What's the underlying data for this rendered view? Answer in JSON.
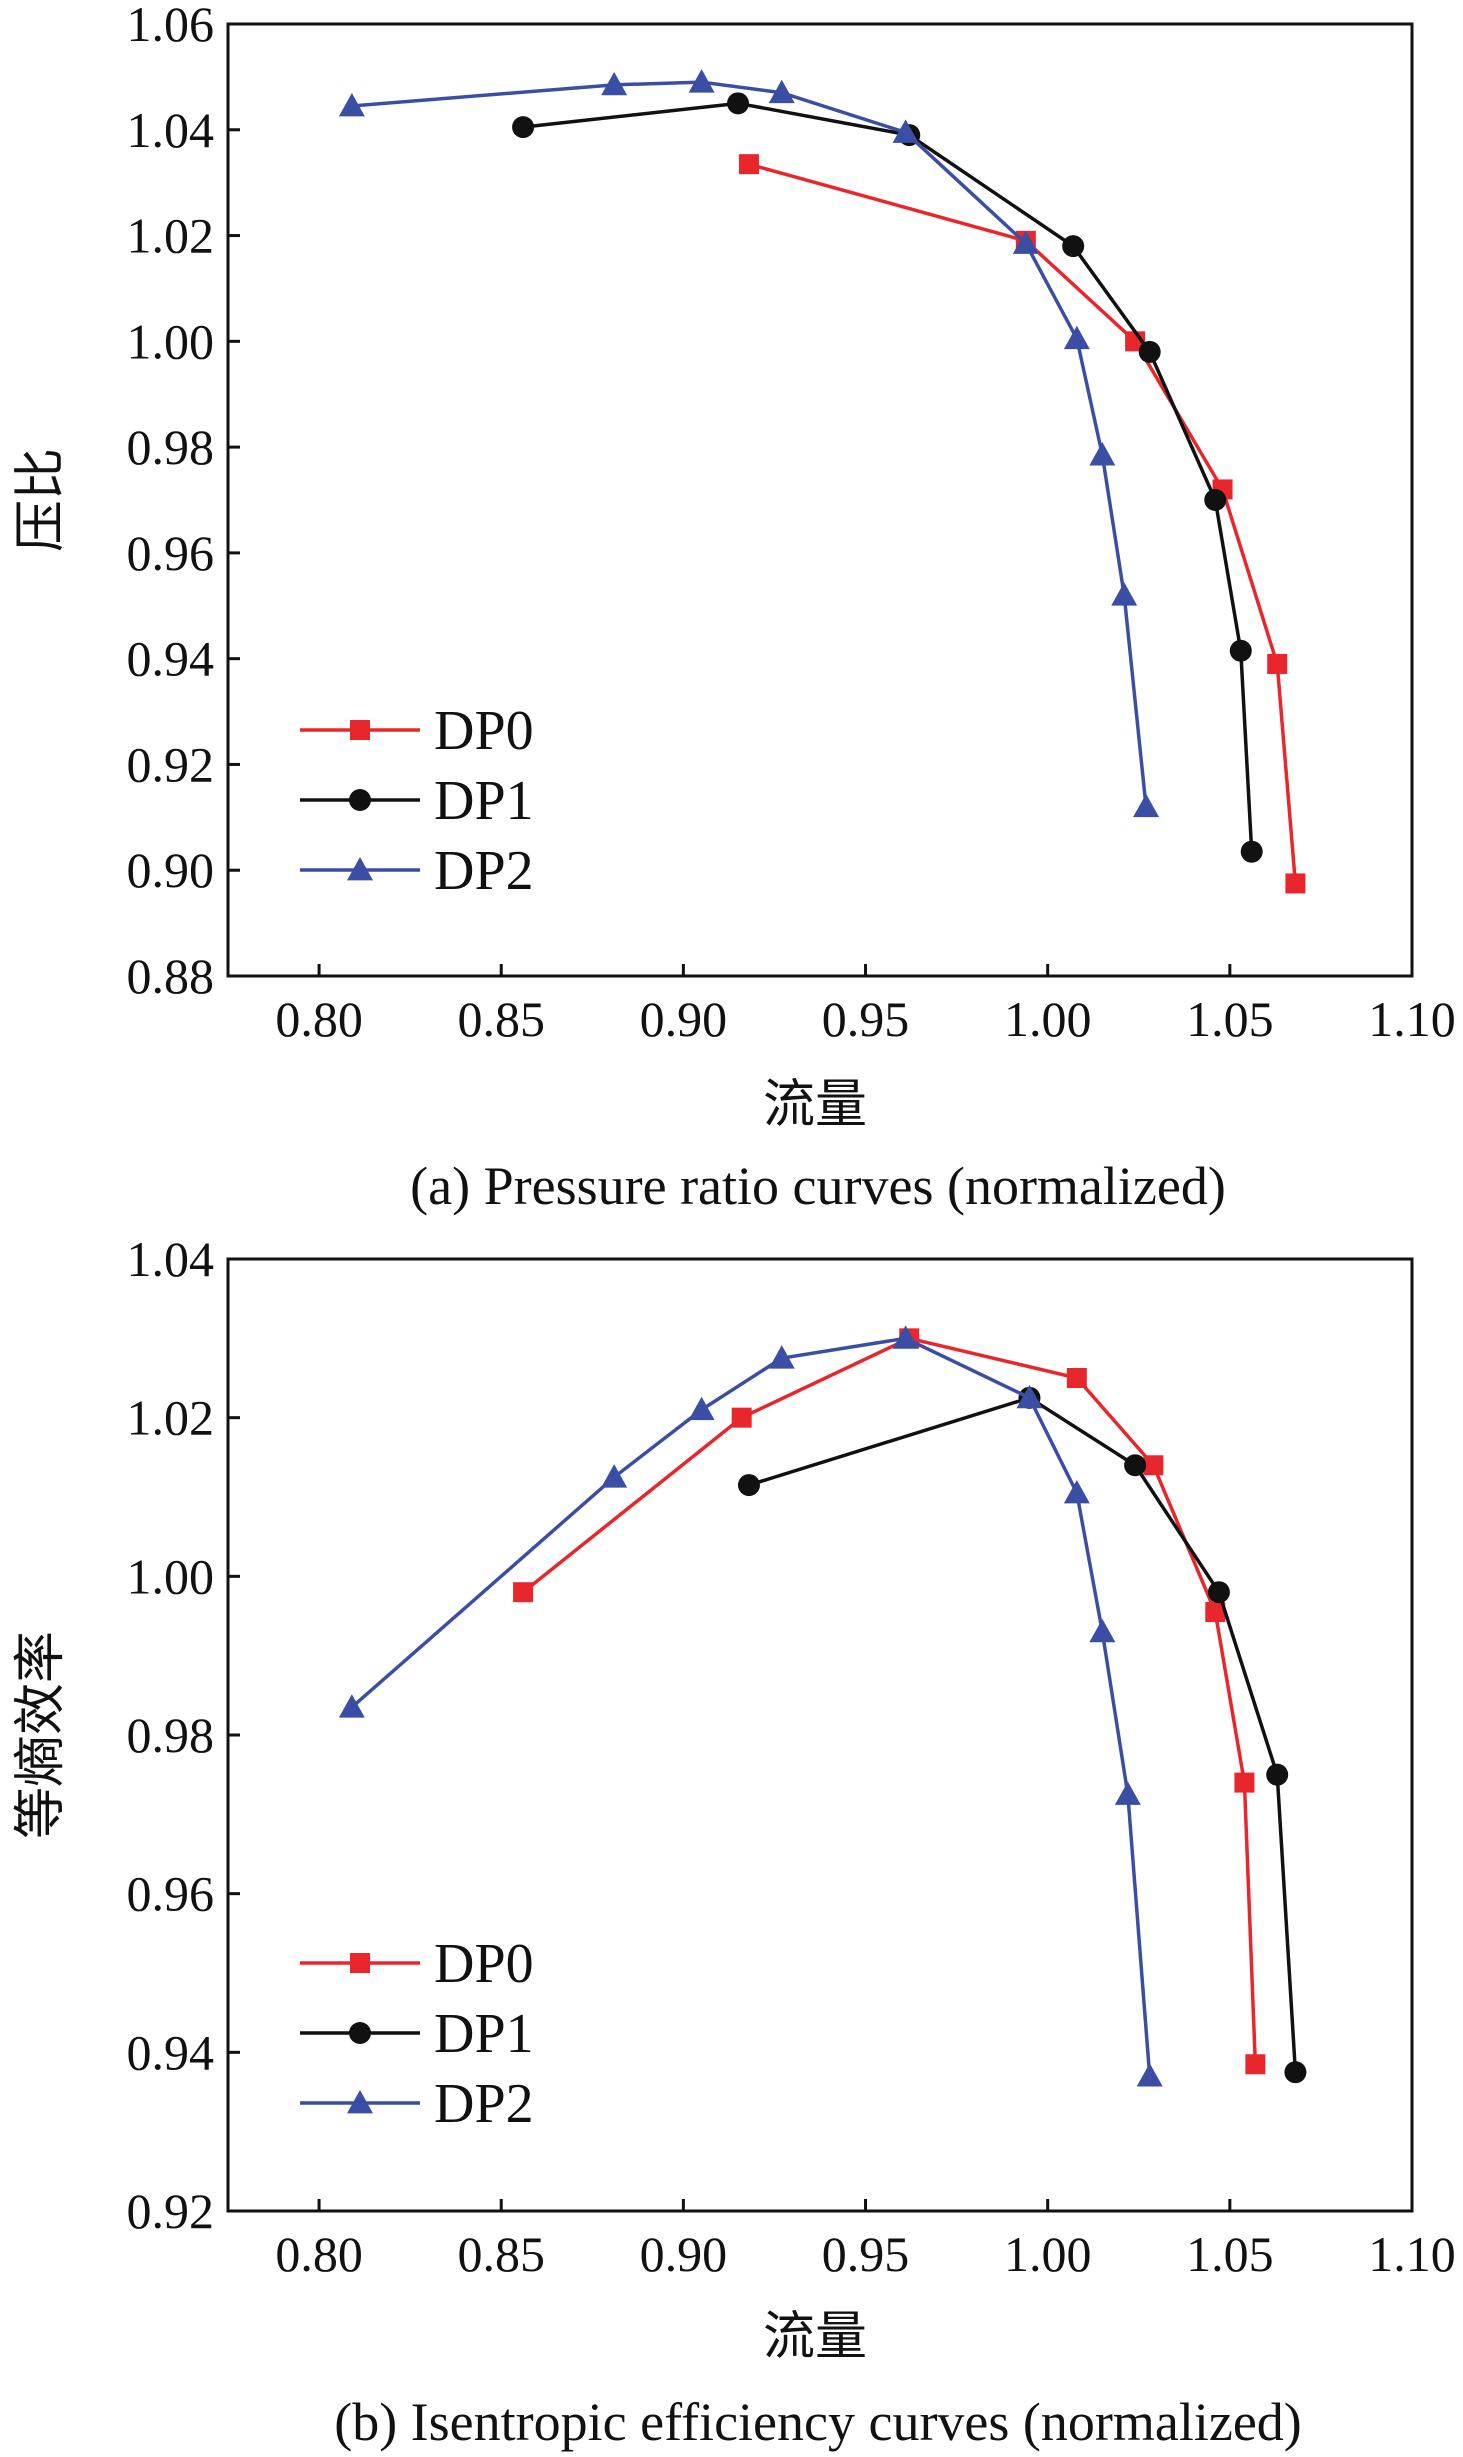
{
  "colors": {
    "DP0": "#e8262b",
    "DP1": "#111111",
    "DP2": "#3a4fa3"
  },
  "chart_data": [
    {
      "type": "line",
      "caption": "(a) Pressure ratio curves (normalized)",
      "xlabel": "流量",
      "ylabel": "压比",
      "xlim": [
        0.775,
        1.1
      ],
      "ylim": [
        0.88,
        1.06
      ],
      "xticks": [
        "0.80",
        "0.85",
        "0.90",
        "0.95",
        "1.00",
        "1.05",
        "1.10"
      ],
      "yticks": [
        "0.88",
        "0.90",
        "0.92",
        "0.94",
        "0.96",
        "0.98",
        "1.00",
        "1.02",
        "1.04",
        "1.06"
      ],
      "legend_position": "lower-left",
      "series": [
        {
          "name": "DP0",
          "marker": "square",
          "color": "#e8262b",
          "x": [
            0.918,
            0.994,
            1.024,
            1.048,
            1.063,
            1.068
          ],
          "y": [
            1.0335,
            1.019,
            1.0,
            0.972,
            0.939,
            0.8975
          ]
        },
        {
          "name": "DP1",
          "marker": "circle",
          "color": "#111111",
          "x": [
            0.856,
            0.915,
            0.962,
            1.007,
            1.028,
            1.046,
            1.053,
            1.056
          ],
          "y": [
            1.0405,
            1.045,
            1.039,
            1.018,
            0.998,
            0.97,
            0.9415,
            0.9035
          ]
        },
        {
          "name": "DP2",
          "marker": "triangle",
          "color": "#3a4fa3",
          "x": [
            0.809,
            0.881,
            0.905,
            0.927,
            0.961,
            0.994,
            1.008,
            1.015,
            1.021,
            1.027
          ],
          "y": [
            1.0445,
            1.0485,
            1.049,
            1.047,
            1.0395,
            1.0185,
            1.0005,
            0.9785,
            0.952,
            0.912
          ]
        }
      ]
    },
    {
      "type": "line",
      "caption": "(b) Isentropic efficiency curves (normalized)",
      "xlabel": "流量",
      "ylabel": "等熵效率",
      "xlim": [
        0.775,
        1.1
      ],
      "ylim": [
        0.92,
        1.04
      ],
      "xticks": [
        "0.80",
        "0.85",
        "0.90",
        "0.95",
        "1.00",
        "1.05",
        "1.10"
      ],
      "yticks": [
        "0.92",
        "0.94",
        "0.96",
        "0.98",
        "1.00",
        "1.02",
        "1.04"
      ],
      "legend_position": "lower-left",
      "series": [
        {
          "name": "DP0",
          "marker": "square",
          "color": "#e8262b",
          "x": [
            0.856,
            0.916,
            0.962,
            1.008,
            1.029,
            1.046,
            1.054,
            1.057
          ],
          "y": [
            0.998,
            1.02,
            1.03,
            1.025,
            1.014,
            0.9955,
            0.974,
            0.9385
          ]
        },
        {
          "name": "DP1",
          "marker": "circle",
          "color": "#111111",
          "x": [
            0.918,
            0.995,
            1.024,
            1.047,
            1.063,
            1.068
          ],
          "y": [
            1.0115,
            1.0225,
            1.014,
            0.998,
            0.975,
            0.9375
          ]
        },
        {
          "name": "DP2",
          "marker": "triangle",
          "color": "#3a4fa3",
          "x": [
            0.809,
            0.881,
            0.905,
            0.927,
            0.961,
            0.995,
            1.008,
            1.015,
            1.022,
            1.028
          ],
          "y": [
            0.9835,
            1.0125,
            1.021,
            1.0275,
            1.03,
            1.0225,
            1.0105,
            0.993,
            0.9725,
            0.937
          ]
        }
      ]
    }
  ]
}
